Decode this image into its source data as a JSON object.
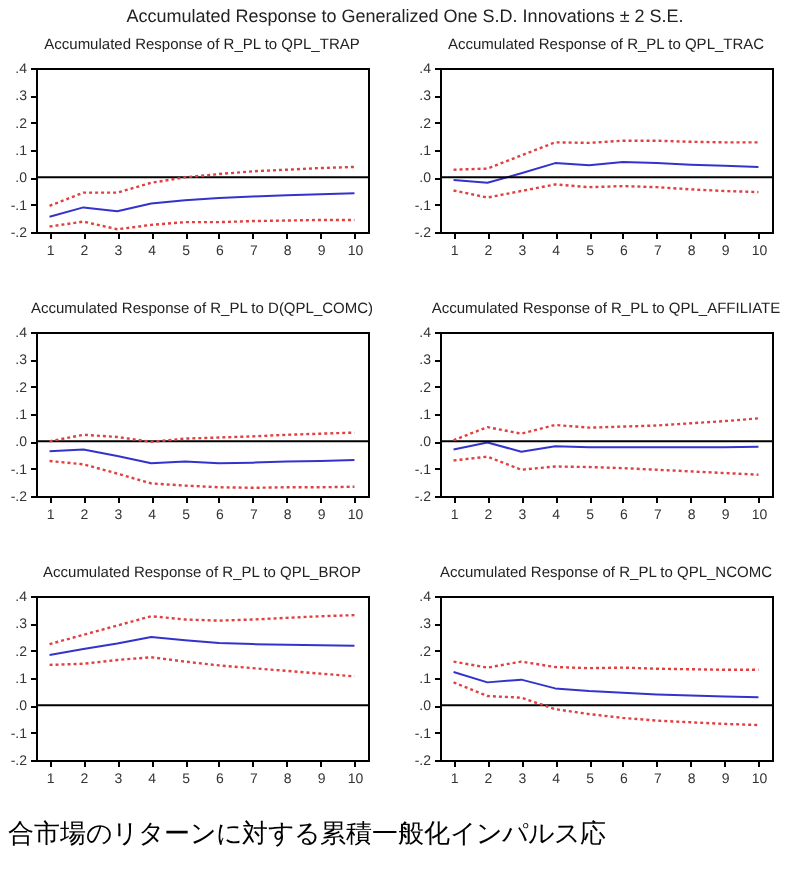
{
  "chart_data": [
    {
      "type": "line",
      "title": "Accumulated Response of R_PL to QPL_TRAP",
      "annotations": [
        "Accumulated Response to Generalized One S.D. Innovations ± 2 S.E.",
        "合市場のリターンに対する累積一般化インパルス応"
      ],
      "x": [
        1,
        2,
        3,
        4,
        5,
        6,
        7,
        8,
        9,
        10
      ],
      "xlim": [
        0.6,
        10.4
      ],
      "xticks": [
        1,
        2,
        3,
        4,
        5,
        6,
        7,
        8,
        9,
        10
      ],
      "ylim": [
        -0.2,
        0.4
      ],
      "yticks": [
        {
          "value": -0.2,
          "label": "-.2"
        },
        {
          "value": -0.1,
          "label": "-.1"
        },
        {
          "value": 0,
          "label": ".0"
        },
        {
          "value": 0.1,
          "label": ".1"
        },
        {
          "value": 0.2,
          "label": ".2"
        },
        {
          "value": 0.3,
          "label": ".3"
        },
        {
          "value": 0.4,
          "label": ".4"
        }
      ],
      "ref_lines": [
        {
          "axis": "y",
          "value": 0,
          "color": "#000000"
        }
      ],
      "series": [
        {
          "color": "#3333cc",
          "line_style": "solid",
          "values": [
            -0.144,
            -0.11,
            -0.124,
            -0.096,
            -0.084,
            -0.076,
            -0.07,
            -0.066,
            -0.062,
            -0.058
          ]
        },
        {
          "color": "#e04040",
          "line_style": "dotted",
          "values": [
            -0.104,
            -0.056,
            -0.056,
            -0.02,
            0.0,
            0.012,
            0.022,
            0.028,
            0.034,
            0.038
          ]
        },
        {
          "color": "#e04040",
          "line_style": "dotted",
          "values": [
            -0.18,
            -0.162,
            -0.19,
            -0.174,
            -0.164,
            -0.164,
            -0.16,
            -0.158,
            -0.156,
            -0.156
          ]
        }
      ]
    },
    {
      "type": "line",
      "title": "Accumulated Response of R_PL to QPL_TRAC",
      "x": [
        1,
        2,
        3,
        4,
        5,
        6,
        7,
        8,
        9,
        10
      ],
      "xlim": [
        0.6,
        10.4
      ],
      "xticks": [
        1,
        2,
        3,
        4,
        5,
        6,
        7,
        8,
        9,
        10
      ],
      "ylim": [
        -0.2,
        0.4
      ],
      "yticks": [
        {
          "value": -0.2,
          "label": "-.2"
        },
        {
          "value": -0.1,
          "label": "-.1"
        },
        {
          "value": 0,
          "label": ".0"
        },
        {
          "value": 0.1,
          "label": ".1"
        },
        {
          "value": 0.2,
          "label": ".2"
        },
        {
          "value": 0.3,
          "label": ".3"
        },
        {
          "value": 0.4,
          "label": ".4"
        }
      ],
      "ref_lines": [
        {
          "axis": "y",
          "value": 0,
          "color": "#000000"
        }
      ],
      "series": [
        {
          "color": "#3333cc",
          "line_style": "solid",
          "values": [
            -0.01,
            -0.02,
            0.015,
            0.052,
            0.044,
            0.056,
            0.052,
            0.046,
            0.042,
            0.038
          ]
        },
        {
          "color": "#e04040",
          "line_style": "dotted",
          "values": [
            0.028,
            0.032,
            0.08,
            0.128,
            0.126,
            0.134,
            0.134,
            0.13,
            0.128,
            0.128
          ]
        },
        {
          "color": "#e04040",
          "line_style": "dotted",
          "values": [
            -0.048,
            -0.074,
            -0.05,
            -0.026,
            -0.036,
            -0.032,
            -0.036,
            -0.044,
            -0.05,
            -0.054
          ]
        }
      ]
    },
    {
      "type": "line",
      "title": "Accumulated Response of R_PL to D(QPL_COMC)",
      "x": [
        1,
        2,
        3,
        4,
        5,
        6,
        7,
        8,
        9,
        10
      ],
      "xlim": [
        0.6,
        10.4
      ],
      "xticks": [
        1,
        2,
        3,
        4,
        5,
        6,
        7,
        8,
        9,
        10
      ],
      "ylim": [
        -0.2,
        0.4
      ],
      "yticks": [
        {
          "value": -0.2,
          "label": "-.2"
        },
        {
          "value": -0.1,
          "label": "-.1"
        },
        {
          "value": 0,
          "label": ".0"
        },
        {
          "value": 0.1,
          "label": ".1"
        },
        {
          "value": 0.2,
          "label": ".2"
        },
        {
          "value": 0.3,
          "label": ".3"
        },
        {
          "value": 0.4,
          "label": ".4"
        }
      ],
      "ref_lines": [
        {
          "axis": "y",
          "value": 0,
          "color": "#000000"
        }
      ],
      "series": [
        {
          "color": "#3333cc",
          "line_style": "solid",
          "values": [
            -0.036,
            -0.03,
            -0.054,
            -0.08,
            -0.074,
            -0.08,
            -0.078,
            -0.074,
            -0.072,
            -0.068
          ]
        },
        {
          "color": "#e04040",
          "line_style": "dotted",
          "values": [
            0.0,
            0.024,
            0.016,
            -0.002,
            0.01,
            0.014,
            0.018,
            0.024,
            0.028,
            0.032
          ]
        },
        {
          "color": "#e04040",
          "line_style": "dotted",
          "values": [
            -0.072,
            -0.084,
            -0.118,
            -0.154,
            -0.162,
            -0.168,
            -0.17,
            -0.168,
            -0.168,
            -0.166
          ]
        }
      ]
    },
    {
      "type": "line",
      "title": "Accumulated Response of R_PL to QPL_AFFILIATE",
      "x": [
        1,
        2,
        3,
        4,
        5,
        6,
        7,
        8,
        9,
        10
      ],
      "xlim": [
        0.6,
        10.4
      ],
      "xticks": [
        1,
        2,
        3,
        4,
        5,
        6,
        7,
        8,
        9,
        10
      ],
      "ylim": [
        -0.2,
        0.4
      ],
      "yticks": [
        {
          "value": -0.2,
          "label": "-.2"
        },
        {
          "value": -0.1,
          "label": "-.1"
        },
        {
          "value": 0,
          "label": ".0"
        },
        {
          "value": 0.1,
          "label": ".1"
        },
        {
          "value": 0.2,
          "label": ".2"
        },
        {
          "value": 0.3,
          "label": ".3"
        },
        {
          "value": 0.4,
          "label": ".4"
        }
      ],
      "ref_lines": [
        {
          "axis": "y",
          "value": 0,
          "color": "#000000"
        }
      ],
      "series": [
        {
          "color": "#3333cc",
          "line_style": "solid",
          "values": [
            -0.03,
            -0.004,
            -0.038,
            -0.018,
            -0.022,
            -0.022,
            -0.022,
            -0.022,
            -0.022,
            -0.02
          ]
        },
        {
          "color": "#e04040",
          "line_style": "dotted",
          "values": [
            0.004,
            0.052,
            0.028,
            0.06,
            0.05,
            0.054,
            0.058,
            0.066,
            0.074,
            0.084
          ]
        },
        {
          "color": "#e04040",
          "line_style": "dotted",
          "values": [
            -0.07,
            -0.056,
            -0.104,
            -0.092,
            -0.094,
            -0.098,
            -0.104,
            -0.11,
            -0.116,
            -0.122
          ]
        }
      ]
    },
    {
      "type": "line",
      "title": "Accumulated Response of R_PL to QPL_BROP",
      "x": [
        1,
        2,
        3,
        4,
        5,
        6,
        7,
        8,
        9,
        10
      ],
      "xlim": [
        0.6,
        10.4
      ],
      "xticks": [
        1,
        2,
        3,
        4,
        5,
        6,
        7,
        8,
        9,
        10
      ],
      "ylim": [
        -0.2,
        0.4
      ],
      "yticks": [
        {
          "value": -0.2,
          "label": "-.2"
        },
        {
          "value": -0.1,
          "label": "-.1"
        },
        {
          "value": 0,
          "label": ".0"
        },
        {
          "value": 0.1,
          "label": ".1"
        },
        {
          "value": 0.2,
          "label": ".2"
        },
        {
          "value": 0.3,
          "label": ".3"
        },
        {
          "value": 0.4,
          "label": ".4"
        }
      ],
      "ref_lines": [
        {
          "axis": "y",
          "value": 0,
          "color": "#000000"
        }
      ],
      "series": [
        {
          "color": "#3333cc",
          "line_style": "solid",
          "values": [
            0.184,
            0.206,
            0.226,
            0.25,
            0.238,
            0.228,
            0.224,
            0.222,
            0.22,
            0.218
          ]
        },
        {
          "color": "#e04040",
          "line_style": "dotted",
          "values": [
            0.224,
            0.258,
            0.292,
            0.326,
            0.314,
            0.31,
            0.314,
            0.32,
            0.326,
            0.33
          ]
        },
        {
          "color": "#e04040",
          "line_style": "dotted",
          "values": [
            0.148,
            0.152,
            0.166,
            0.176,
            0.16,
            0.146,
            0.136,
            0.126,
            0.116,
            0.106
          ]
        }
      ]
    },
    {
      "type": "line",
      "title": "Accumulated Response of R_PL to QPL_NCOMC",
      "x": [
        1,
        2,
        3,
        4,
        5,
        6,
        7,
        8,
        9,
        10
      ],
      "xlim": [
        0.6,
        10.4
      ],
      "xticks": [
        1,
        2,
        3,
        4,
        5,
        6,
        7,
        8,
        9,
        10
      ],
      "ylim": [
        -0.2,
        0.4
      ],
      "yticks": [
        {
          "value": -0.2,
          "label": "-.2"
        },
        {
          "value": -0.1,
          "label": "-.1"
        },
        {
          "value": 0,
          "label": ".0"
        },
        {
          "value": 0.1,
          "label": ".1"
        },
        {
          "value": 0.2,
          "label": ".2"
        },
        {
          "value": 0.3,
          "label": ".3"
        },
        {
          "value": 0.4,
          "label": ".4"
        }
      ],
      "ref_lines": [
        {
          "axis": "y",
          "value": 0,
          "color": "#000000"
        }
      ],
      "series": [
        {
          "color": "#3333cc",
          "line_style": "solid",
          "values": [
            0.122,
            0.084,
            0.094,
            0.062,
            0.052,
            0.046,
            0.04,
            0.036,
            0.032,
            0.03
          ]
        },
        {
          "color": "#e04040",
          "line_style": "dotted",
          "values": [
            0.16,
            0.138,
            0.16,
            0.14,
            0.136,
            0.138,
            0.134,
            0.132,
            0.13,
            0.13
          ]
        },
        {
          "color": "#e04040",
          "line_style": "dotted",
          "values": [
            0.084,
            0.034,
            0.028,
            -0.014,
            -0.032,
            -0.046,
            -0.056,
            -0.062,
            -0.068,
            -0.072
          ]
        }
      ]
    }
  ]
}
